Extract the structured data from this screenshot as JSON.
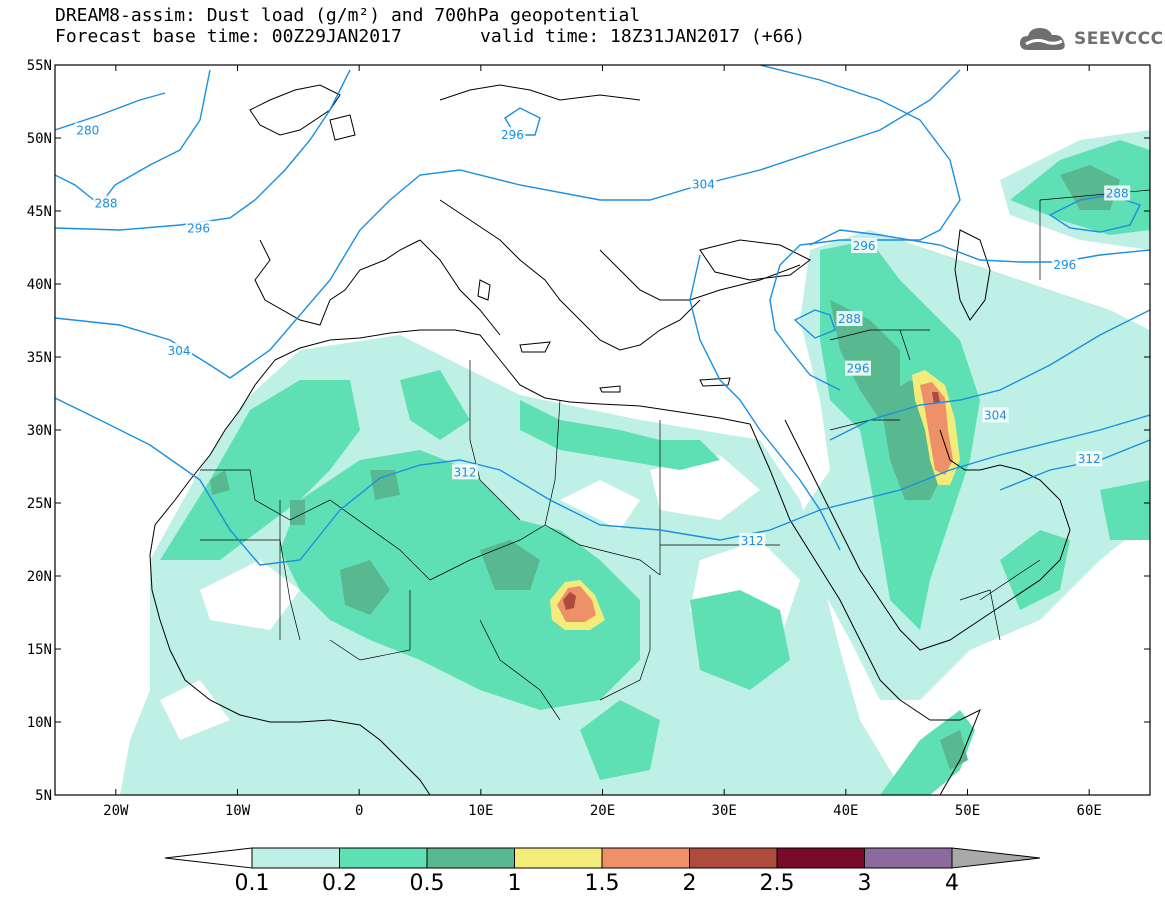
{
  "header": {
    "title_line1": "DREAM8-assim: Dust load (g/m²) and 700hPa geopotential",
    "title_line2": "Forecast base time: 00Z29JAN2017",
    "valid_time": "valid time: 18Z31JAN2017 (+66)"
  },
  "logo": {
    "text": "SEEVCCC",
    "icon": "cloud-icon"
  },
  "map": {
    "lon_range": [
      -25,
      65
    ],
    "lat_range": [
      5,
      55
    ],
    "lat_ticks": [
      "55N",
      "50N",
      "45N",
      "40N",
      "35N",
      "30N",
      "25N",
      "20N",
      "15N",
      "10N",
      "5N"
    ],
    "lon_ticks": [
      "20W",
      "10W",
      "0",
      "10E",
      "20E",
      "30E",
      "40E",
      "50E",
      "60E"
    ],
    "contour_color": "#1a8fe0",
    "contours": [
      {
        "label": "280",
        "lon": -22.3,
        "lat": 50.5
      },
      {
        "label": "288",
        "lon": -20.8,
        "lat": 45.5
      },
      {
        "label": "296",
        "lon": -13.2,
        "lat": 43.8
      },
      {
        "label": "304",
        "lon": -14.8,
        "lat": 35.4
      },
      {
        "label": "296",
        "lon": 12.6,
        "lat": 50.2
      },
      {
        "label": "304",
        "lon": 28.3,
        "lat": 46.8
      },
      {
        "label": "312",
        "lon": 8.7,
        "lat": 27.1
      },
      {
        "label": "312",
        "lon": 32.3,
        "lat": 22.4
      },
      {
        "label": "296",
        "lon": 41.5,
        "lat": 42.6
      },
      {
        "label": "288",
        "lon": 40.3,
        "lat": 37.6
      },
      {
        "label": "296",
        "lon": 41.0,
        "lat": 34.2
      },
      {
        "label": "304",
        "lon": 52.3,
        "lat": 31.0
      },
      {
        "label": "312",
        "lon": 60.0,
        "lat": 28.0
      },
      {
        "label": "296",
        "lon": 58.0,
        "lat": 41.3
      },
      {
        "label": "288",
        "lon": 62.3,
        "lat": 46.2
      }
    ]
  },
  "colorbar": {
    "colors": [
      "#ffffff",
      "#bff0e6",
      "#5fe0b4",
      "#58b890",
      "#f3ec7b",
      "#ee9168",
      "#ad4b3d",
      "#7a0a2a",
      "#8c6a9d",
      "#a9a9a9"
    ],
    "labels": [
      "0.1",
      "0.2",
      "0.5",
      "1",
      "1.5",
      "2",
      "2.5",
      "3",
      "4"
    ]
  }
}
